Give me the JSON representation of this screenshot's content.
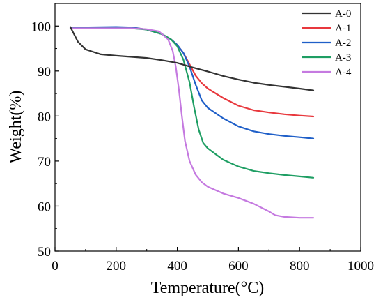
{
  "chart_data": {
    "type": "line",
    "xlabel": "Temperature(°C)",
    "ylabel": "Weight(%)",
    "xlim": [
      0,
      1000
    ],
    "ylim": [
      50,
      105
    ],
    "xticks": [
      0,
      200,
      400,
      600,
      800,
      1000
    ],
    "yticks": [
      50,
      60,
      70,
      80,
      90,
      100
    ],
    "grid": false,
    "legend_position": "top-right",
    "series": [
      {
        "name": "A-0",
        "color": "#333333",
        "points": [
          [
            50,
            99.8
          ],
          [
            60,
            98.5
          ],
          [
            75,
            96.5
          ],
          [
            100,
            94.8
          ],
          [
            150,
            93.7
          ],
          [
            200,
            93.4
          ],
          [
            300,
            92.9
          ],
          [
            350,
            92.4
          ],
          [
            400,
            91.8
          ],
          [
            450,
            90.8
          ],
          [
            500,
            89.9
          ],
          [
            550,
            88.9
          ],
          [
            600,
            88.1
          ],
          [
            650,
            87.4
          ],
          [
            700,
            86.9
          ],
          [
            750,
            86.5
          ],
          [
            800,
            86.1
          ],
          [
            845,
            85.7
          ]
        ]
      },
      {
        "name": "A-1",
        "color": "#e8383d",
        "points": [
          [
            50,
            99.7
          ],
          [
            100,
            99.7
          ],
          [
            200,
            99.7
          ],
          [
            250,
            99.7
          ],
          [
            300,
            99.2
          ],
          [
            350,
            98.2
          ],
          [
            380,
            97.0
          ],
          [
            400,
            95.8
          ],
          [
            420,
            94.0
          ],
          [
            440,
            91.5
          ],
          [
            460,
            89.0
          ],
          [
            480,
            87.3
          ],
          [
            500,
            86.1
          ],
          [
            550,
            84.0
          ],
          [
            600,
            82.3
          ],
          [
            650,
            81.3
          ],
          [
            700,
            80.8
          ],
          [
            750,
            80.4
          ],
          [
            800,
            80.1
          ],
          [
            845,
            79.9
          ]
        ]
      },
      {
        "name": "A-2",
        "color": "#1f5fc8",
        "points": [
          [
            50,
            99.7
          ],
          [
            100,
            99.7
          ],
          [
            200,
            99.8
          ],
          [
            250,
            99.7
          ],
          [
            300,
            99.2
          ],
          [
            350,
            98.2
          ],
          [
            380,
            97.0
          ],
          [
            400,
            95.8
          ],
          [
            420,
            94.0
          ],
          [
            440,
            91.0
          ],
          [
            460,
            87.0
          ],
          [
            480,
            83.5
          ],
          [
            500,
            81.8
          ],
          [
            550,
            79.5
          ],
          [
            600,
            77.7
          ],
          [
            650,
            76.6
          ],
          [
            700,
            76.0
          ],
          [
            750,
            75.6
          ],
          [
            800,
            75.3
          ],
          [
            845,
            75.0
          ]
        ]
      },
      {
        "name": "A-3",
        "color": "#1e9e63",
        "points": [
          [
            50,
            99.5
          ],
          [
            100,
            99.5
          ],
          [
            200,
            99.5
          ],
          [
            250,
            99.5
          ],
          [
            300,
            99.2
          ],
          [
            350,
            98.2
          ],
          [
            380,
            97.0
          ],
          [
            400,
            95.5
          ],
          [
            420,
            92.5
          ],
          [
            440,
            87.5
          ],
          [
            455,
            82.0
          ],
          [
            470,
            77.0
          ],
          [
            485,
            74.0
          ],
          [
            500,
            72.8
          ],
          [
            550,
            70.3
          ],
          [
            600,
            68.8
          ],
          [
            650,
            67.8
          ],
          [
            700,
            67.3
          ],
          [
            750,
            66.9
          ],
          [
            800,
            66.6
          ],
          [
            845,
            66.3
          ]
        ]
      },
      {
        "name": "A-4",
        "color": "#c57ae0",
        "points": [
          [
            50,
            99.5
          ],
          [
            100,
            99.5
          ],
          [
            200,
            99.5
          ],
          [
            250,
            99.5
          ],
          [
            300,
            99.3
          ],
          [
            340,
            98.8
          ],
          [
            370,
            97.0
          ],
          [
            385,
            94.5
          ],
          [
            395,
            91.0
          ],
          [
            405,
            86.0
          ],
          [
            415,
            80.0
          ],
          [
            425,
            74.5
          ],
          [
            440,
            70.0
          ],
          [
            460,
            67.0
          ],
          [
            480,
            65.3
          ],
          [
            500,
            64.3
          ],
          [
            550,
            62.8
          ],
          [
            600,
            61.8
          ],
          [
            650,
            60.5
          ],
          [
            700,
            58.8
          ],
          [
            720,
            58.0
          ],
          [
            750,
            57.6
          ],
          [
            800,
            57.4
          ],
          [
            845,
            57.4
          ]
        ]
      }
    ]
  }
}
